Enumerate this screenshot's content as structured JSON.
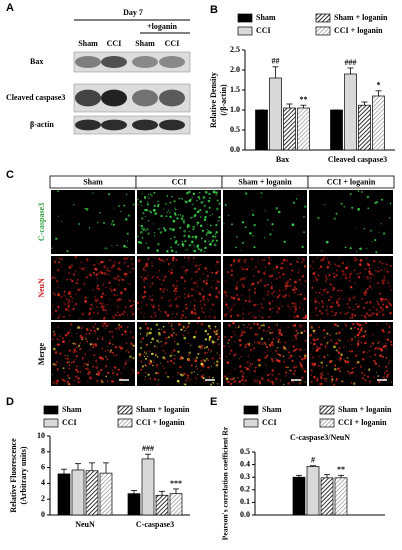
{
  "blot": {
    "label": "A",
    "timepoint": "Day 7",
    "treatment": "+loganin",
    "lanes": [
      "Sham",
      "CCI",
      "Sham",
      "CCI"
    ],
    "rows": [
      "Bax",
      "Cleaved caspase3",
      "β-actin"
    ]
  },
  "staining": {
    "label": "C",
    "columns": [
      "Sham",
      "CCI",
      "Sham + loganin",
      "CCI + loganin"
    ],
    "rows": [
      "C-caspase3",
      "NeuN",
      "Merge"
    ],
    "row_colors": [
      "#2e9e3e",
      "#d02020",
      "#000000"
    ]
  },
  "chart_data": [
    {
      "type": "bar",
      "panel_label": "B",
      "ylabel": [
        "Relative Density",
        "(/β-actin)"
      ],
      "categories": [
        "Bax",
        "Cleaved caspase3"
      ],
      "ylim": [
        0,
        2.5
      ],
      "yticks": [
        {
          "value": 0,
          "label": "0.0"
        },
        0.5,
        {
          "value": 1,
          "label": "1.0"
        },
        1.5,
        {
          "value": 2,
          "label": "2.0"
        },
        2.5
      ],
      "series": [
        {
          "name": "Sham",
          "color": "#000000",
          "values": [
            1,
            1
          ],
          "errors": [
            0,
            0
          ]
        },
        {
          "name": "CCI",
          "color": "#d9d9d9",
          "values": [
            1.8,
            1.9
          ],
          "errors": [
            0.28,
            0.15
          ],
          "annotations": [
            "##",
            "###"
          ]
        },
        {
          "name": "Sham + loganin",
          "color": "#000000",
          "hatch": true,
          "values": [
            1.05,
            1.12
          ],
          "errors": [
            0.1,
            0.08
          ]
        },
        {
          "name": "CCI + loganin",
          "color": "#a0a0a0",
          "hatch": true,
          "values": [
            1.05,
            1.35
          ],
          "errors": [
            0.07,
            0.13
          ],
          "annotations": [
            "**",
            "*"
          ]
        }
      ]
    },
    {
      "type": "bar",
      "panel_label": "D",
      "ylabel": [
        "Relative Fluorescence",
        "(Arbitrary units)"
      ],
      "categories": [
        "NeuN",
        "C-caspase3"
      ],
      "ylim": [
        0,
        10
      ],
      "yticks": [
        0,
        2,
        4,
        6,
        8,
        10
      ],
      "series": [
        {
          "name": "Sham",
          "color": "#000000",
          "values": [
            5.2,
            2.7
          ],
          "errors": [
            0.6,
            0.4
          ]
        },
        {
          "name": "CCI",
          "color": "#d9d9d9",
          "values": [
            5.7,
            7.1
          ],
          "errors": [
            0.8,
            0.6
          ],
          "annotations": [
            null,
            "###"
          ]
        },
        {
          "name": "Sham + loganin",
          "color": "#000000",
          "hatch": true,
          "values": [
            5.6,
            2.5
          ],
          "errors": [
            1.0,
            0.5
          ]
        },
        {
          "name": "CCI + loganin",
          "color": "#a0a0a0",
          "hatch": true,
          "values": [
            5.3,
            2.7
          ],
          "errors": [
            1.3,
            0.6
          ],
          "annotations": [
            null,
            "***"
          ]
        }
      ]
    },
    {
      "type": "bar",
      "panel_label": "E",
      "title": "C-caspase3/NeuN",
      "ylabel": [
        "Pearson's correlation coefficient Rr"
      ],
      "ylim": [
        0,
        0.5
      ],
      "yticks": [
        {
          "value": 0,
          "label": "0.0"
        },
        0.1,
        0.2,
        0.3,
        0.4,
        0.5
      ],
      "series": [
        {
          "name": "Sham",
          "color": "#000000",
          "values": [
            0.3
          ],
          "errors": [
            0.015
          ]
        },
        {
          "name": "CCI",
          "color": "#d9d9d9",
          "values": [
            0.385
          ],
          "errors": [
            0.006
          ],
          "annotations": [
            "#"
          ]
        },
        {
          "name": "Sham + loganin",
          "color": "#000000",
          "hatch": true,
          "values": [
            0.295
          ],
          "errors": [
            0.025
          ]
        },
        {
          "name": "CCI + loganin",
          "color": "#a0a0a0",
          "hatch": true,
          "values": [
            0.295
          ],
          "errors": [
            0.02
          ],
          "annotations": [
            "**"
          ]
        }
      ]
    }
  ]
}
